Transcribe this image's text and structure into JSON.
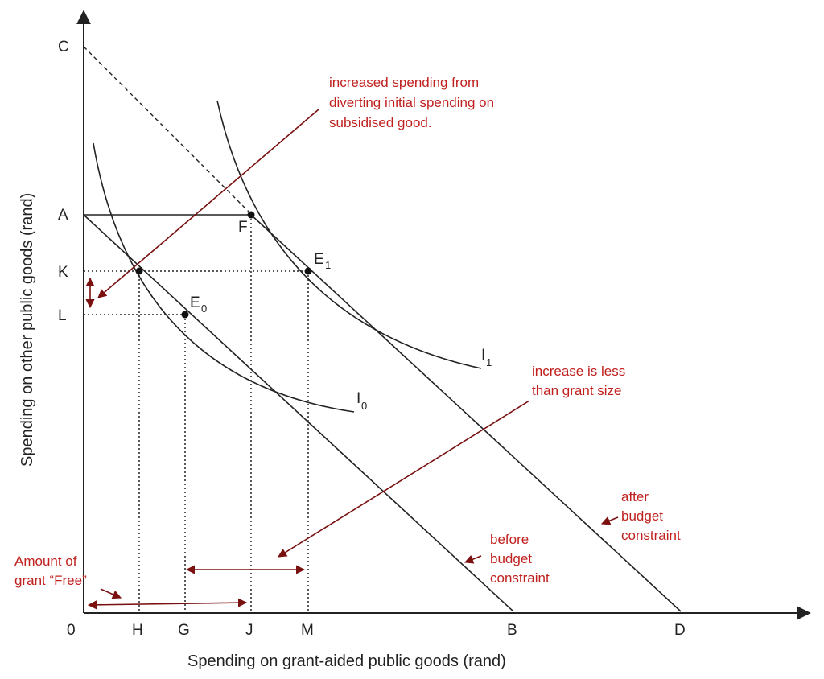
{
  "axes": {
    "x_label": "Spending on grant-aided public goods (rand)",
    "y_label": "Spending on other public goods (rand)",
    "origin": "0"
  },
  "points": {
    "C": "C",
    "A": "A",
    "K": "K",
    "L": "L",
    "F": "F",
    "E1": "E",
    "E1_sub": "1",
    "E0": "E",
    "E0_sub": "0",
    "H": "H",
    "G": "G",
    "J": "J",
    "M": "M",
    "B": "B",
    "D": "D"
  },
  "curves": {
    "I1": "I",
    "I1_sub": "1",
    "I0": "I",
    "I0_sub": "0"
  },
  "annotations": {
    "diverting": [
      "increased spending from",
      "diverting initial spending on",
      "subsidised good."
    ],
    "increase_less": [
      "increase is less",
      "than grant size"
    ],
    "after_budget": [
      "after",
      "budget",
      "constraint"
    ],
    "before_budget": [
      "before",
      "budget",
      "constraint"
    ],
    "grant_free": [
      "Amount of",
      "grant “Free”"
    ]
  },
  "colors": {
    "annotation": "#c0211f",
    "arrow": "#7a1010",
    "ink": "#222222"
  }
}
